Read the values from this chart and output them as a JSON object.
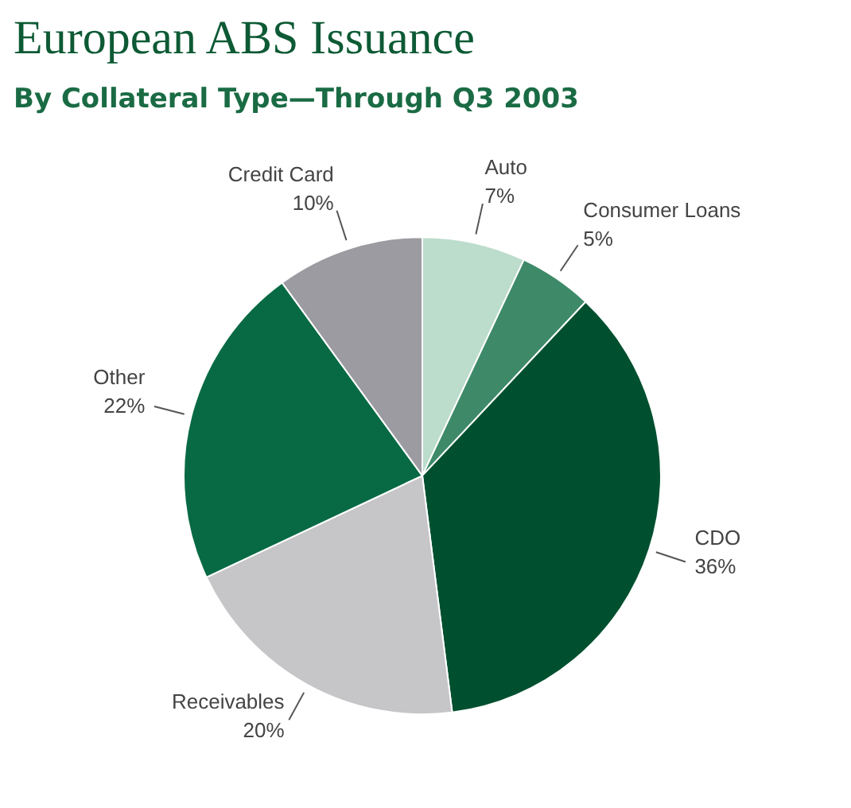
{
  "chart_data": {
    "type": "pie",
    "title": "European ABS Issuance",
    "subtitle": "By Collateral Type—Through Q3 2003",
    "categories": [
      "Auto",
      "Consumer Loans",
      "CDO",
      "Receivables",
      "Other",
      "Credit Card"
    ],
    "values": [
      7,
      5,
      36,
      20,
      22,
      10
    ],
    "value_labels": [
      "7%",
      "5%",
      "36%",
      "20%",
      "22%",
      "10%"
    ],
    "colors": [
      "#bcdccc",
      "#3e8a68",
      "#00502f",
      "#c6c6c8",
      "#086a44",
      "#9b9ba1"
    ]
  }
}
